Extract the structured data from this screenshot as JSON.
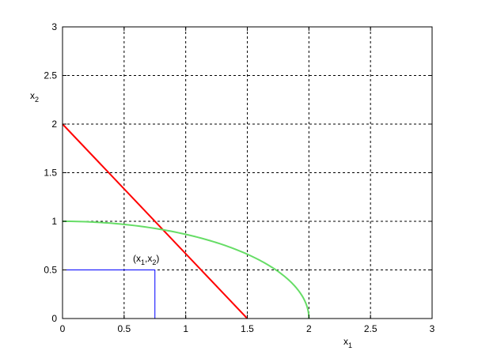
{
  "chart_data": {
    "type": "line",
    "title": "",
    "xlabel": "x",
    "xlabel_sub": "1",
    "ylabel": "x",
    "ylabel_sub": "2",
    "xlim": [
      0,
      3
    ],
    "ylim": [
      0,
      3
    ],
    "grid": true,
    "xticks": [
      "0",
      "0.5",
      "1",
      "1.5",
      "2",
      "2.5",
      "3"
    ],
    "yticks": [
      "0",
      "0.5",
      "1",
      "1.5",
      "2",
      "2.5",
      "3"
    ],
    "series": [
      {
        "color": "#ff0000",
        "kind": "line",
        "points": [
          [
            0,
            2
          ],
          [
            1.5,
            0
          ]
        ]
      },
      {
        "color": "#66dd66",
        "kind": "ellipse-quarter",
        "points": [
          [
            0,
            1
          ],
          [
            0.5,
            0.968
          ],
          [
            1,
            0.866
          ],
          [
            1.5,
            0.661
          ],
          [
            1.8,
            0.436
          ],
          [
            1.95,
            0.222
          ],
          [
            2,
            0
          ]
        ]
      },
      {
        "color": "#0000ff",
        "kind": "line",
        "points": [
          [
            0,
            0.5
          ],
          [
            0.75,
            0.5
          ],
          [
            0.75,
            0
          ]
        ]
      }
    ],
    "annotation": {
      "text_open": "(x",
      "sub1": "1",
      "comma": ",x",
      "sub2": "2",
      "text_close": ")",
      "at": [
        0.75,
        0.5
      ]
    }
  }
}
